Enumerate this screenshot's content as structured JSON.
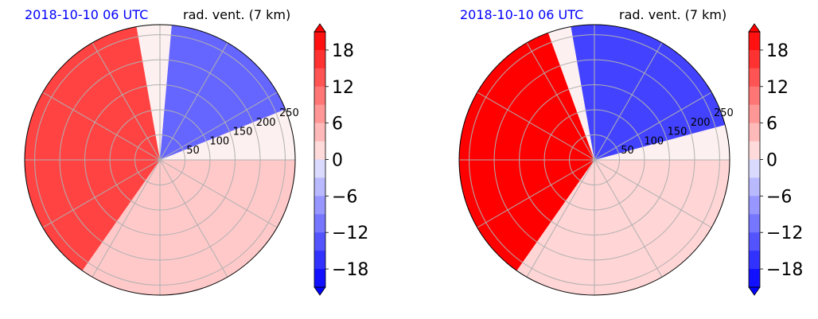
{
  "colors": {
    "positive": "#ff0000",
    "negative": "#0000ff",
    "title_date": "#0000ff",
    "grid": "#b0b0b0"
  },
  "chart_data": [
    {
      "type": "heatmap",
      "projection": "polar",
      "title_left": "2018-10-10 06 UTC",
      "title_right": "rad. vent. (7 km)",
      "radial_ticks": [
        "50",
        "100",
        "150",
        "200",
        "250"
      ],
      "radial_tick_values": [
        50,
        100,
        150,
        200,
        250
      ],
      "colorbar": {
        "ticks": [
          "18",
          "12",
          "6",
          "0",
          "−6",
          "−12",
          "−18"
        ],
        "tick_values": [
          18,
          12,
          6,
          0,
          -6,
          -12,
          -18
        ],
        "range": [
          -21,
          21
        ],
        "extend": "both"
      },
      "field_regions": [
        {
          "sign": "positive",
          "level": 15,
          "angle_from": 100,
          "angle_to": 235
        },
        {
          "sign": "negative",
          "level": -12,
          "angle_from": 22,
          "angle_to": 85
        },
        {
          "sign": "positive",
          "level": 3,
          "angle_from": 235,
          "angle_to": 360
        }
      ]
    },
    {
      "type": "heatmap",
      "projection": "polar",
      "title_left": "2018-10-10 06 UTC",
      "title_right": "rad. vent. (7 km)",
      "radial_ticks": [
        "50",
        "100",
        "150",
        "200",
        "250"
      ],
      "radial_tick_values": [
        50,
        100,
        150,
        200,
        250
      ],
      "colorbar": {
        "ticks": [
          "18",
          "12",
          "6",
          "0",
          "−6",
          "−12",
          "−18"
        ],
        "tick_values": [
          18,
          12,
          6,
          0,
          -6,
          -12,
          -18
        ],
        "range": [
          -21,
          21
        ],
        "extend": "both"
      },
      "field_regions": [
        {
          "sign": "positive",
          "level": 21,
          "angle_from": 110,
          "angle_to": 235
        },
        {
          "sign": "negative",
          "level": -15,
          "angle_from": 15,
          "angle_to": 100
        },
        {
          "sign": "positive",
          "level": 2,
          "angle_from": 235,
          "angle_to": 360
        }
      ]
    }
  ]
}
